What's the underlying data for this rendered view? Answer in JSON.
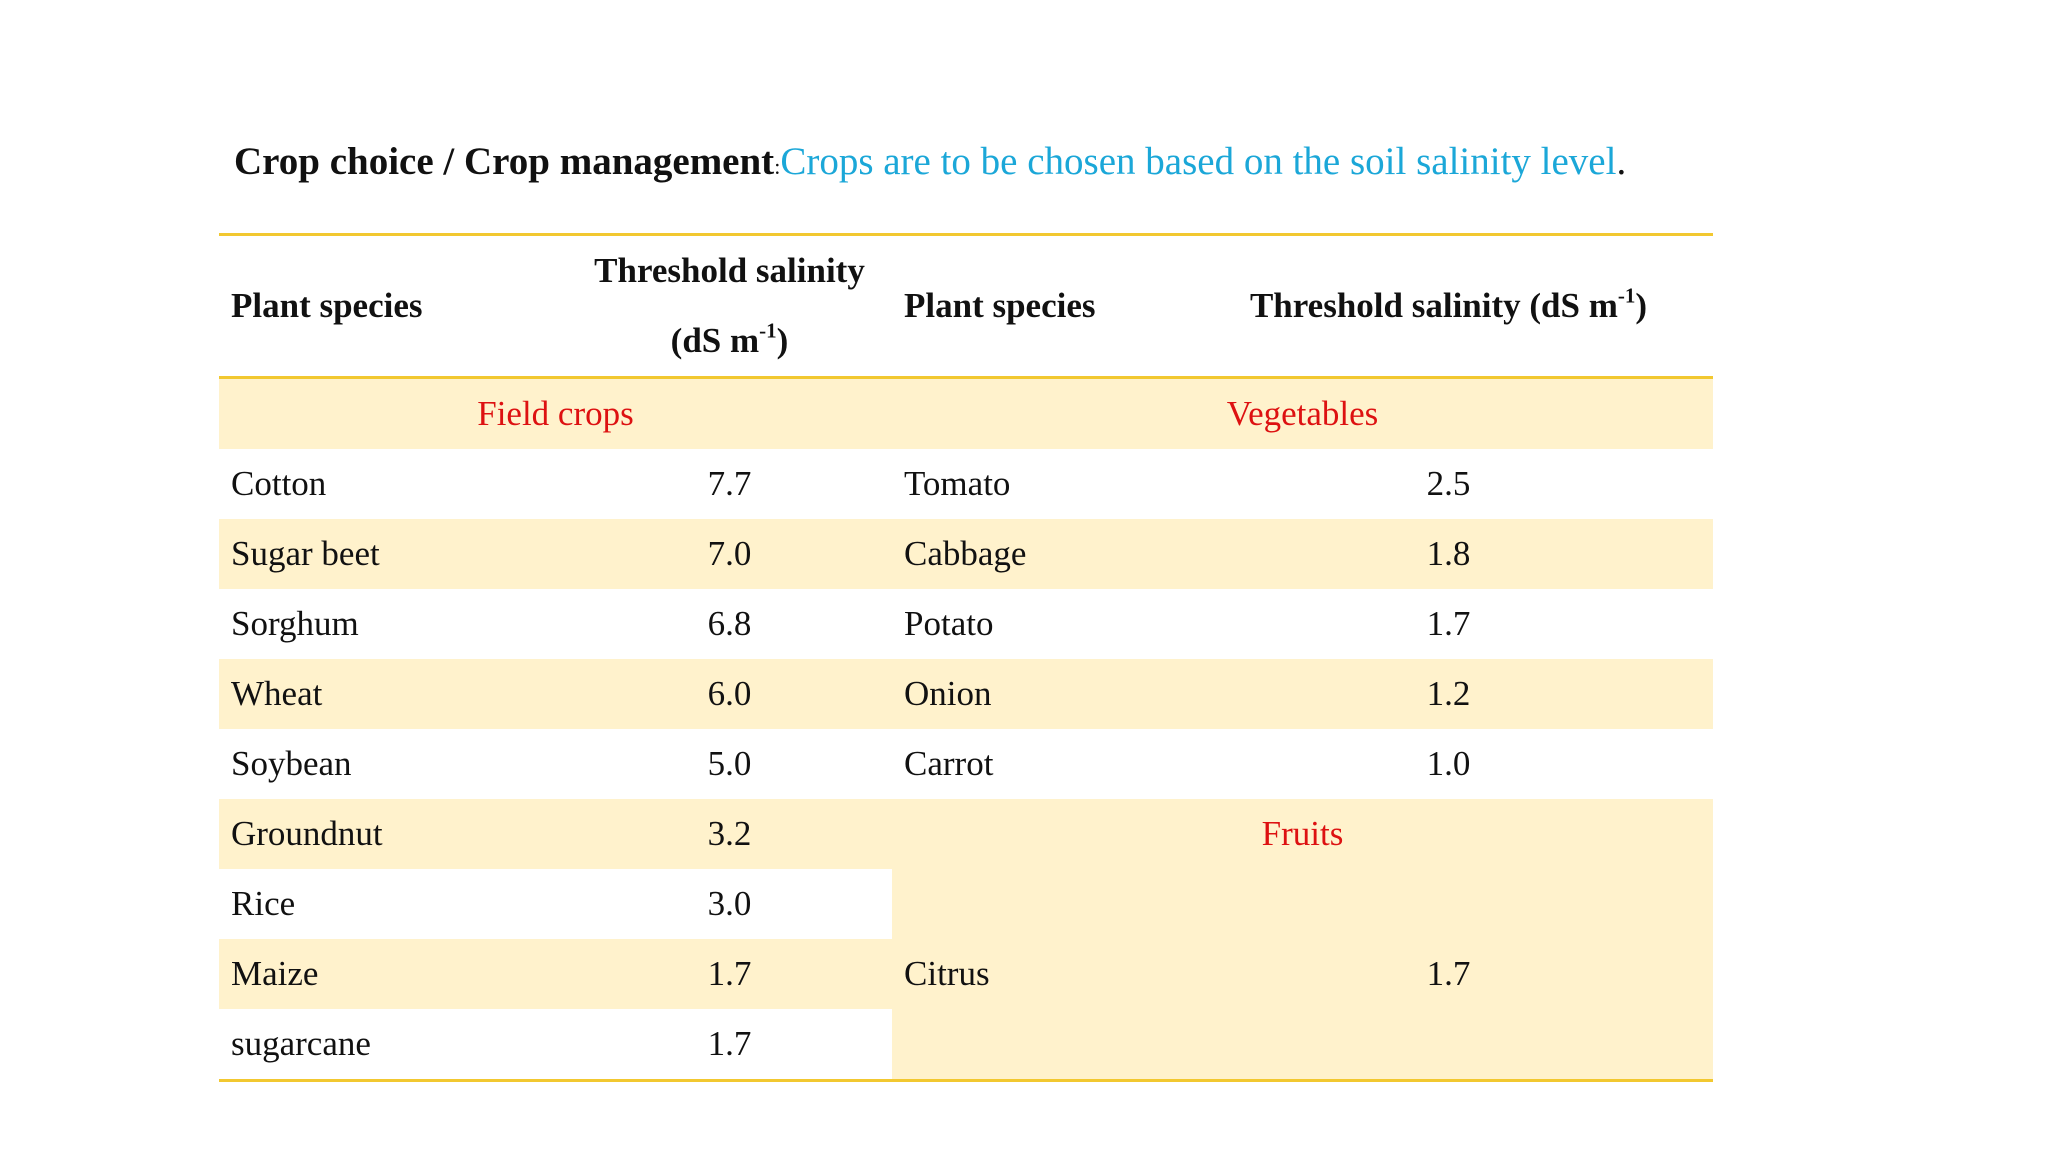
{
  "heading": {
    "bold_text": "Crop choice / Crop management",
    "separator": ":",
    "accent_text": "Crops are to be chosen based on the soil salinity level",
    "trailing": "."
  },
  "table": {
    "headers": {
      "plant_species_1": "Plant species",
      "threshold_1_line1": "Threshold salinity",
      "threshold_1_line2_pre": "(dS m",
      "threshold_1_sup": "-1",
      "threshold_1_line2_post": ")",
      "plant_species_2": "Plant species",
      "threshold_2_pre": "Threshold salinity (dS m",
      "threshold_2_sup": "-1",
      "threshold_2_post": ")"
    },
    "groups": {
      "field_crops": "Field crops",
      "vegetables": "Vegetables",
      "fruits": "Fruits"
    },
    "field_crops": [
      {
        "name": "Cotton",
        "value": "7.7"
      },
      {
        "name": "Sugar beet",
        "value": "7.0"
      },
      {
        "name": "Sorghum",
        "value": "6.8"
      },
      {
        "name": "Wheat",
        "value": "6.0"
      },
      {
        "name": "Soybean",
        "value": "5.0"
      },
      {
        "name": "Groundnut",
        "value": "3.2"
      },
      {
        "name": "Rice",
        "value": "3.0"
      },
      {
        "name": "Maize",
        "value": "1.7"
      },
      {
        "name": "sugarcane",
        "value": "1.7"
      }
    ],
    "vegetables": [
      {
        "name": "Tomato",
        "value": "2.5"
      },
      {
        "name": "Cabbage",
        "value": "1.8"
      },
      {
        "name": "Potato",
        "value": "1.7"
      },
      {
        "name": "Onion",
        "value": "1.2"
      },
      {
        "name": "Carrot",
        "value": "1.0"
      }
    ],
    "fruits": [
      {
        "name": "Citrus",
        "value": "1.7"
      }
    ]
  },
  "colors": {
    "accent": "#1ba7d8",
    "group_label": "#dd1111",
    "shade": "#fff2cc",
    "rule": "#f2c830"
  }
}
